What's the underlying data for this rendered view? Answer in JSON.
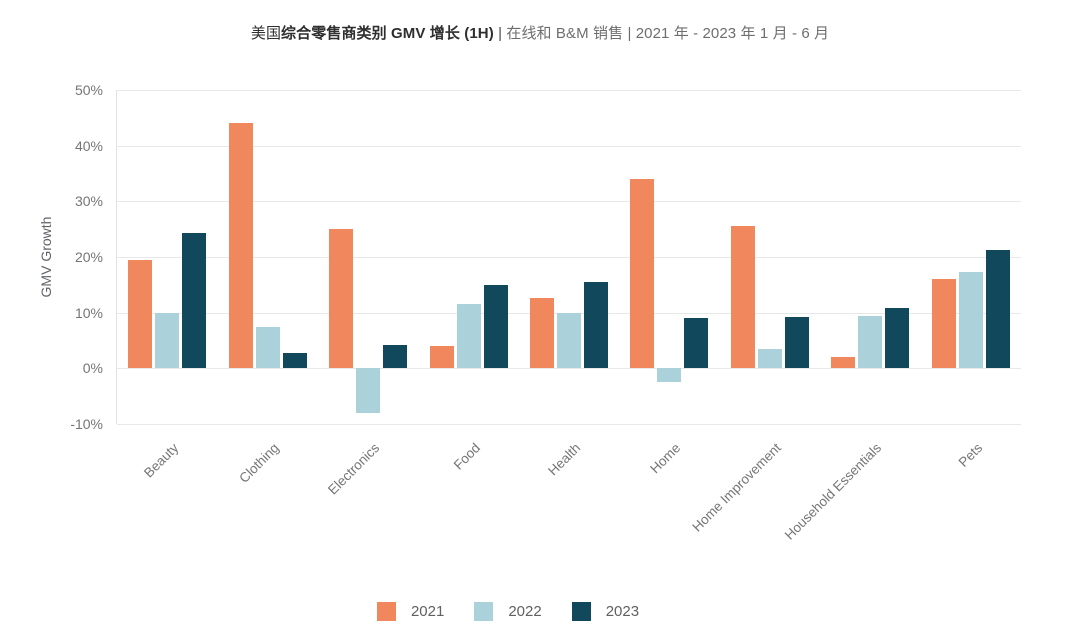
{
  "title": {
    "prefix": "美国",
    "bold": "综合零售商类别 GMV 增长 (1H)",
    "separator": " | ",
    "subtitle": "在线和 B&M 销售 | 2021 年 - 2023 年 1 月 - 6 月"
  },
  "chart_data": {
    "type": "bar",
    "title": "美国综合零售商类别 GMV 增长 (1H) | 在线和 B&M 销售 | 2021 年 - 2023 年 1 月 - 6 月",
    "xlabel": "",
    "ylabel": "GMV Growth",
    "ylim": [
      -10,
      50
    ],
    "ytick_step": 10,
    "ytick_suffix": "%",
    "grid": true,
    "legend_position": "bottom",
    "categories": [
      "Beauty",
      "Clothing",
      "Electronics",
      "Food",
      "Health",
      "Home",
      "Home Improvement",
      "Household Essentials",
      "Pets"
    ],
    "series": [
      {
        "name": "2021",
        "color": "#F1875C",
        "values": [
          19.5,
          44,
          25,
          4,
          12.7,
          34,
          25.5,
          2,
          16
        ]
      },
      {
        "name": "2022",
        "color": "#ABD1DB",
        "values": [
          10,
          7.5,
          -8,
          11.5,
          10,
          -2.5,
          3.5,
          9.5,
          17.3
        ]
      },
      {
        "name": "2023",
        "color": "#11485C",
        "values": [
          24.3,
          2.8,
          4.2,
          15,
          15.5,
          9,
          9.2,
          10.8,
          21.3
        ]
      }
    ]
  },
  "colors": {
    "series_2021": "#F1875C",
    "series_2022": "#ABD1DB",
    "series_2023": "#11485C",
    "gridline": "#e8e8e8",
    "tick_text": "#757575",
    "axis_title_text": "#5f6368"
  }
}
